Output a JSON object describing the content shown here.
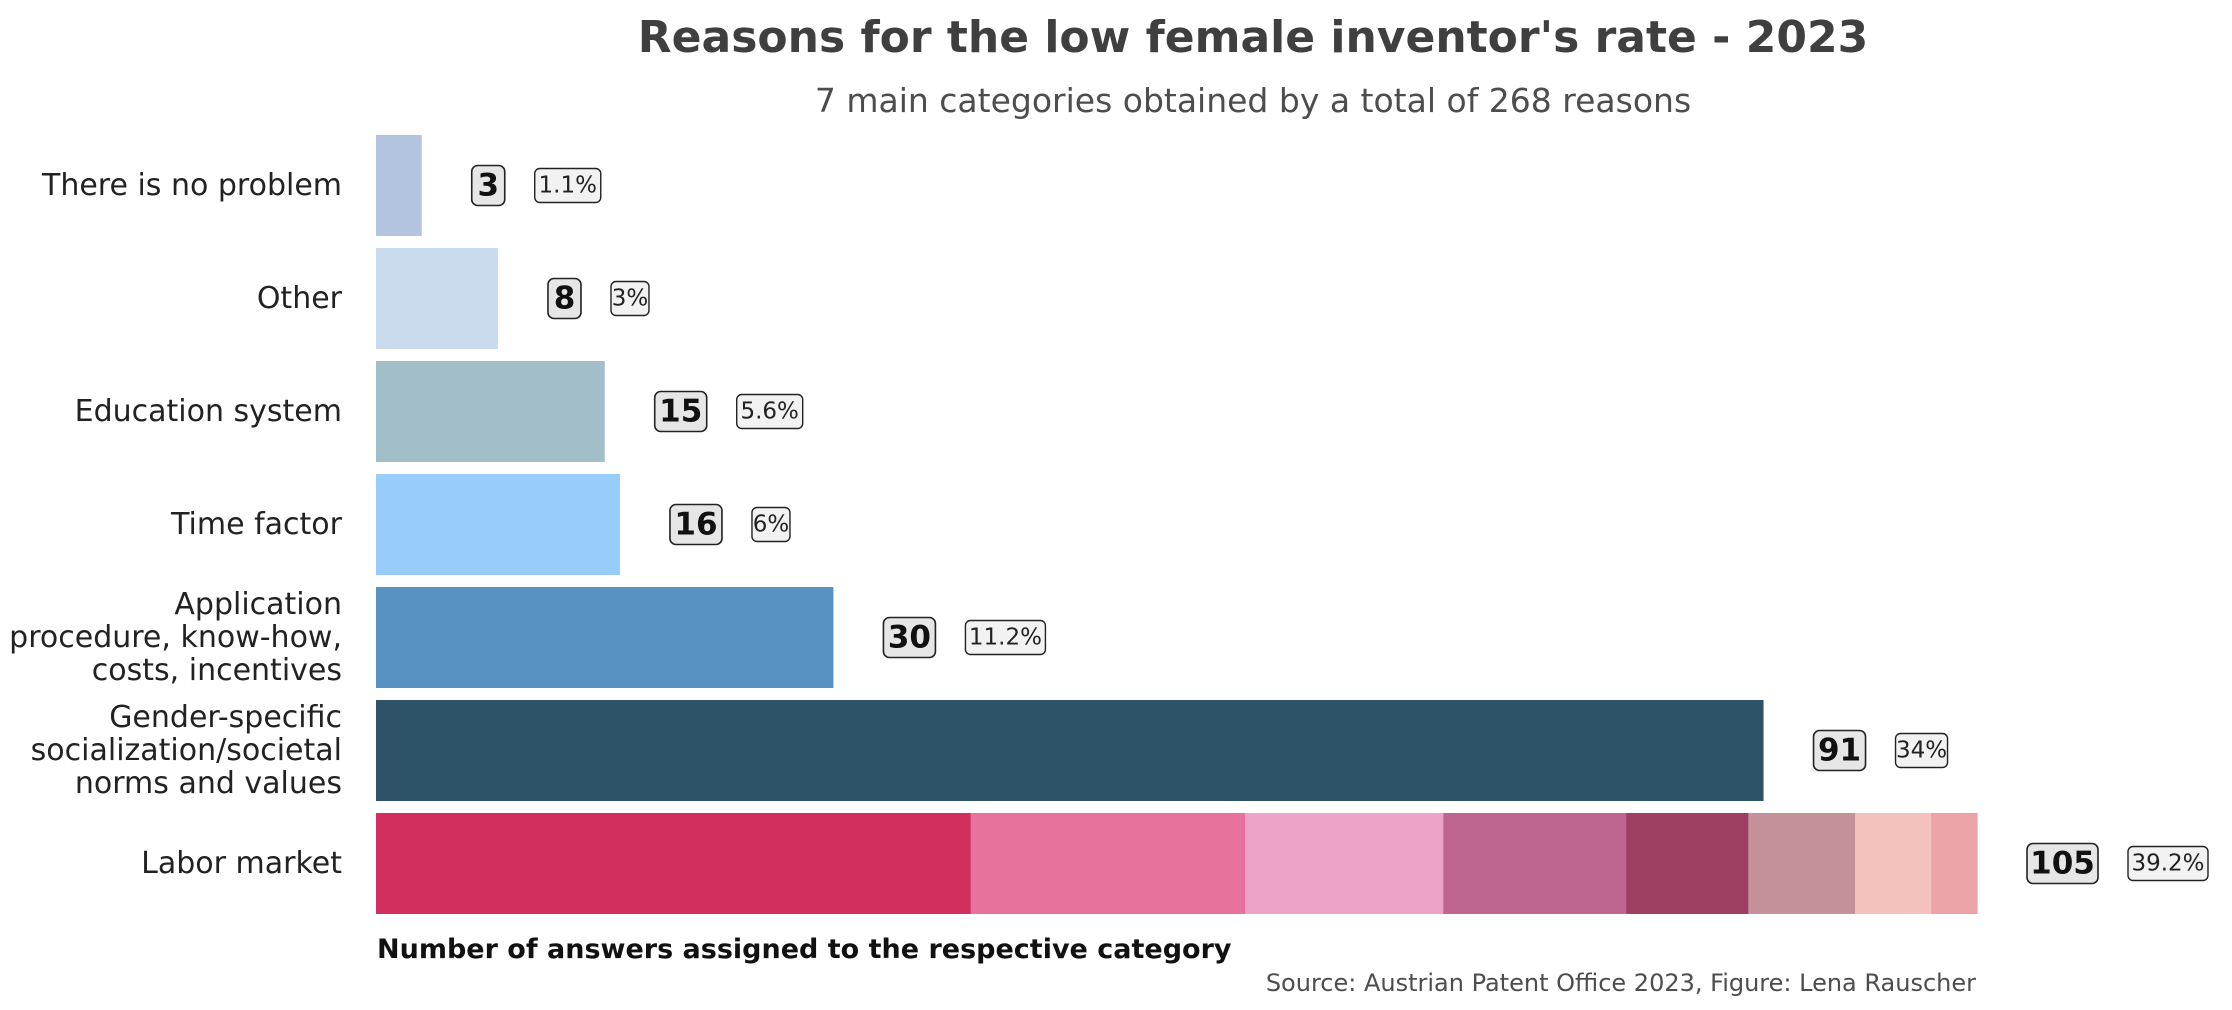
{
  "chart_data": {
    "type": "bar",
    "orientation": "horizontal",
    "title": "Reasons for the low female inventor's rate - 2023",
    "subtitle": "7 main categories obtained by a total of 268 reasons",
    "xlabel": "Number of answers assigned to the respective category",
    "source": "Source: Austrian Patent Office 2023, Figure: Lena Rauscher",
    "xlim": [
      0,
      105
    ],
    "grid": false,
    "categories": [
      {
        "lines": [
          "There is no problem"
        ],
        "value": 3,
        "count_label": "3",
        "percent_label": "1.1%",
        "color": "#b3c4de"
      },
      {
        "lines": [
          "Other"
        ],
        "value": 8,
        "count_label": "8",
        "percent_label": "3%",
        "color": "#cadbed"
      },
      {
        "lines": [
          "Education system"
        ],
        "value": 15,
        "count_label": "15",
        "percent_label": "5.6%",
        "color": "#a2bec9"
      },
      {
        "lines": [
          "Time factor"
        ],
        "value": 16,
        "count_label": "16",
        "percent_label": "6%",
        "color": "#98ccfa"
      },
      {
        "lines": [
          "Application",
          "procedure, know-how,",
          "costs, incentives"
        ],
        "value": 30,
        "count_label": "30",
        "percent_label": "11.2%",
        "color": "#5892c2"
      },
      {
        "lines": [
          "Gender-specific",
          "socialization/societal",
          "norms and values"
        ],
        "value": 91,
        "count_label": "91",
        "percent_label": "34%",
        "color": "#2e5268"
      },
      {
        "lines": [
          "Labor market"
        ],
        "value": 105,
        "count_label": "105",
        "percent_label": "39.2%",
        "segments": [
          {
            "value": 39,
            "color": "#d22f5e"
          },
          {
            "value": 18,
            "color": "#e6729d"
          },
          {
            "value": 13,
            "color": "#eda3c5"
          },
          {
            "value": 12,
            "color": "#be6690"
          },
          {
            "value": 8,
            "color": "#9c3f62"
          },
          {
            "value": 7,
            "color": "#c4919a"
          },
          {
            "value": 5,
            "color": "#f3c2bd"
          },
          {
            "value": 3,
            "color": "#eba3a8"
          }
        ]
      }
    ]
  }
}
